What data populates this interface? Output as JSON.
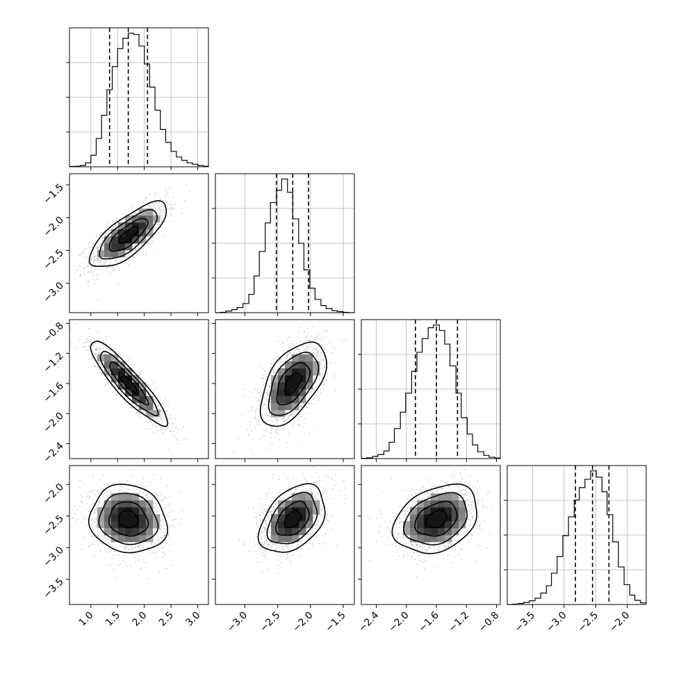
{
  "chart_data": {
    "type": "corner",
    "parameters": [
      {
        "id": "p0",
        "range": [
          0.6,
          3.2
        ],
        "ticks": [
          "1.0",
          "1.5",
          "2.0",
          "2.5",
          "3.0"
        ],
        "tick_values": [
          1.0,
          1.5,
          2.0,
          2.5,
          3.0
        ],
        "quantiles": [
          1.35,
          1.7,
          2.06
        ]
      },
      {
        "id": "p1",
        "range": [
          -3.45,
          -1.33
        ],
        "ticks": [
          "−3.0",
          "−2.5",
          "−2.0",
          "−1.5"
        ],
        "tick_values": [
          -3.0,
          -2.5,
          -2.0,
          -1.5
        ],
        "quantiles": [
          -2.52,
          -2.27,
          -2.03
        ]
      },
      {
        "id": "p2",
        "range": [
          -2.6,
          -0.75
        ],
        "ticks": [
          "−2.4",
          "−2.0",
          "−1.6",
          "−1.2",
          "−0.8"
        ],
        "tick_values": [
          -2.4,
          -2.0,
          -1.6,
          -1.2,
          -0.8
        ],
        "quantiles": [
          -1.88,
          -1.6,
          -1.32
        ]
      },
      {
        "id": "p3",
        "range": [
          -3.9,
          -1.7
        ],
        "ticks": [
          "−3.5",
          "−3.0",
          "−2.5",
          "−2.0"
        ],
        "tick_values": [
          -3.5,
          -3.0,
          -2.5,
          -2.0
        ],
        "quantiles": [
          -2.82,
          -2.55,
          -2.29
        ]
      }
    ],
    "histograms": [
      {
        "param": "p0",
        "bin_edges": [
          0.6,
          0.7,
          0.8,
          0.9,
          1.0,
          1.1,
          1.2,
          1.3,
          1.4,
          1.5,
          1.6,
          1.7,
          1.8,
          1.9,
          2.0,
          2.1,
          2.2,
          2.3,
          2.4,
          2.5,
          2.6,
          2.7,
          2.8,
          2.9,
          3.0,
          3.1,
          3.2
        ],
        "counts": [
          1,
          2,
          5,
          15,
          45,
          110,
          200,
          300,
          390,
          460,
          500,
          520,
          515,
          470,
          400,
          310,
          220,
          145,
          95,
          60,
          38,
          25,
          15,
          10,
          5,
          2
        ]
      },
      {
        "param": "p1",
        "bin_edges": [
          -3.45,
          -3.37,
          -3.29,
          -3.2,
          -3.12,
          -3.03,
          -2.94,
          -2.86,
          -2.78,
          -2.69,
          -2.61,
          -2.52,
          -2.44,
          -2.35,
          -2.27,
          -2.18,
          -2.1,
          -2.01,
          -1.93,
          -1.84,
          -1.76,
          -1.67,
          -1.59,
          -1.5,
          -1.42,
          -1.33
        ],
        "counts": [
          0,
          2,
          8,
          15,
          25,
          45,
          90,
          180,
          300,
          440,
          540,
          600,
          655,
          590,
          460,
          340,
          210,
          120,
          65,
          35,
          20,
          10,
          5,
          2,
          0
        ]
      },
      {
        "param": "p2",
        "bin_edges": [
          -2.6,
          -2.53,
          -2.45,
          -2.38,
          -2.3,
          -2.23,
          -2.16,
          -2.08,
          -2.01,
          -1.93,
          -1.86,
          -1.79,
          -1.71,
          -1.64,
          -1.56,
          -1.49,
          -1.42,
          -1.34,
          -1.27,
          -1.19,
          -1.12,
          -1.05,
          -0.97,
          -0.9,
          -0.82,
          -0.75
        ],
        "counts": [
          1,
          3,
          8,
          15,
          28,
          60,
          110,
          170,
          240,
          320,
          390,
          440,
          480,
          490,
          470,
          420,
          340,
          240,
          150,
          90,
          50,
          25,
          12,
          5,
          2
        ]
      },
      {
        "param": "p3",
        "bin_edges": [
          -3.9,
          -3.81,
          -3.72,
          -3.64,
          -3.55,
          -3.46,
          -3.37,
          -3.28,
          -3.2,
          -3.11,
          -3.02,
          -2.93,
          -2.84,
          -2.76,
          -2.67,
          -2.58,
          -2.49,
          -2.4,
          -2.32,
          -2.23,
          -2.14,
          -2.05,
          -1.96,
          -1.88,
          -1.79,
          -1.7
        ],
        "counts": [
          0,
          2,
          5,
          10,
          18,
          30,
          55,
          90,
          150,
          230,
          330,
          420,
          500,
          560,
          600,
          640,
          610,
          540,
          430,
          300,
          180,
          95,
          45,
          20,
          8
        ]
      }
    ],
    "pairs": [
      {
        "x": "p0",
        "y": "p1",
        "mean": [
          1.7,
          -2.27
        ],
        "std": [
          0.36,
          0.25
        ],
        "corr": 0.75
      },
      {
        "x": "p0",
        "y": "p2",
        "mean": [
          1.7,
          -1.6
        ],
        "std": [
          0.36,
          0.28
        ],
        "corr": -0.9
      },
      {
        "x": "p1",
        "y": "p2",
        "mean": [
          -2.27,
          -1.6
        ],
        "std": [
          0.25,
          0.28
        ],
        "corr": 0.55
      },
      {
        "x": "p0",
        "y": "p3",
        "mean": [
          1.7,
          -2.55
        ],
        "std": [
          0.36,
          0.27
        ],
        "corr": -0.1
      },
      {
        "x": "p1",
        "y": "p3",
        "mean": [
          -2.27,
          -2.55
        ],
        "std": [
          0.25,
          0.27
        ],
        "corr": 0.4
      },
      {
        "x": "p2",
        "y": "p3",
        "mean": [
          -1.6,
          -2.55
        ],
        "std": [
          0.28,
          0.27
        ],
        "corr": 0.3
      }
    ],
    "contour_levels_sigma": [
      0.5,
      1.0,
      1.5,
      2.0
    ],
    "grid": true,
    "colors": {
      "line": "#000000",
      "grid": "#b0b0b0",
      "points": "#aaaaaa",
      "density_dark": "#000000",
      "background": "#ffffff"
    }
  }
}
